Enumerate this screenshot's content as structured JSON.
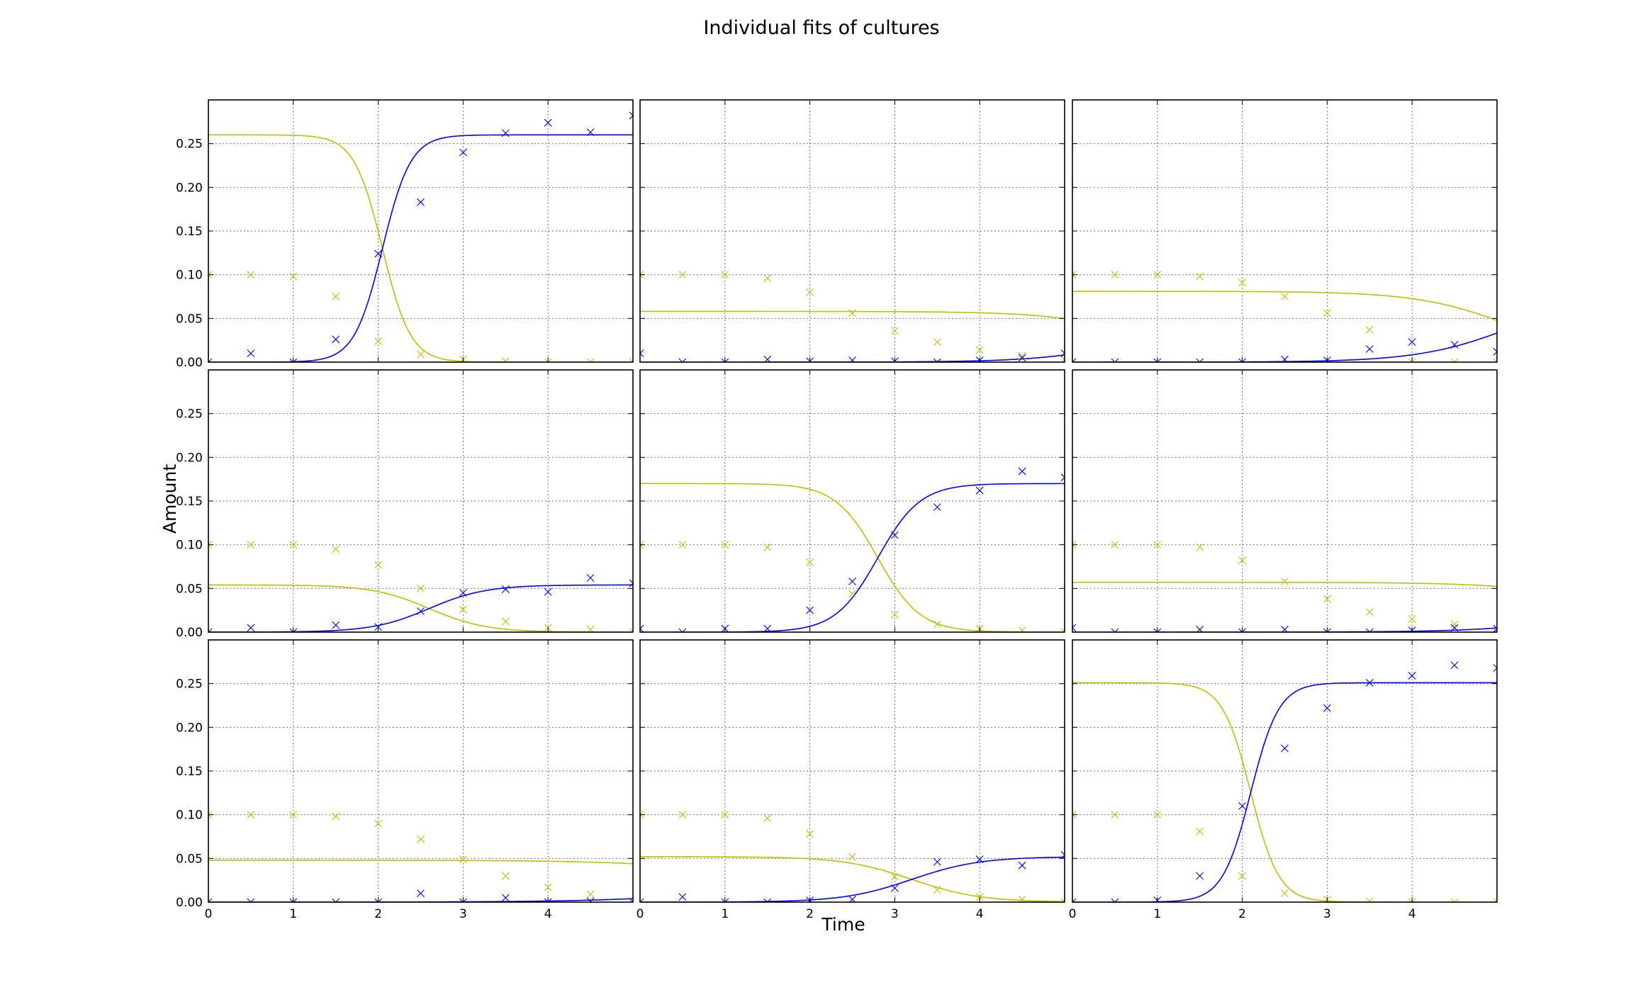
{
  "title": "Individual fits of cultures",
  "xlabel": "Time",
  "ylabel": "Amount",
  "colors": {
    "series_a": "#0000ff",
    "series_b": "#bfbf00",
    "grid": "#000000"
  },
  "chart_data": {
    "type": "scatter",
    "layout": "3x3 grid, shared axes",
    "title": "Individual fits of cultures",
    "xlabel": "Time",
    "ylabel": "Amount",
    "xlim": [
      0,
      5
    ],
    "ylim": [
      0,
      0.3
    ],
    "xticks": [
      0,
      1,
      2,
      3,
      4
    ],
    "yticks": [
      0.0,
      0.05,
      0.1,
      0.15,
      0.2,
      0.25
    ],
    "grid": true,
    "x": [
      0,
      0.5,
      1,
      1.5,
      2,
      2.5,
      3,
      3.5,
      4,
      4.5,
      5
    ],
    "panels": [
      {
        "fit_level": 0.26,
        "fit_t": 2.05,
        "fit_k": 6.0,
        "blue": [
          0.0,
          0.01,
          0.0,
          0.026,
          0.124,
          0.183,
          0.24,
          0.262,
          0.274,
          0.263,
          0.282
        ],
        "yellow": [
          0.1,
          0.1,
          0.098,
          0.075,
          0.024,
          0.009,
          0.003,
          0.001,
          0.0,
          0.0,
          0.0
        ]
      },
      {
        "fit_level": 0.058,
        "fit_t": 6.0,
        "fit_k": 1.8,
        "blue": [
          0.01,
          0.0,
          0.0,
          0.003,
          0.001,
          0.002,
          0.001,
          0.0,
          0.002,
          0.005,
          0.01
        ],
        "yellow": [
          0.1,
          0.1,
          0.1,
          0.096,
          0.08,
          0.056,
          0.036,
          0.023,
          0.014,
          0.007,
          0.003
        ]
      },
      {
        "fit_level": 0.081,
        "fit_t": 5.2,
        "fit_k": 1.8,
        "blue": [
          0.0,
          0.0,
          0.0,
          0.0,
          0.0,
          0.003,
          0.002,
          0.015,
          0.023,
          0.02,
          0.012
        ],
        "yellow": [
          0.1,
          0.1,
          0.1,
          0.098,
          0.091,
          0.075,
          0.056,
          0.037,
          0.0,
          0.0,
          0.0
        ]
      },
      {
        "fit_level": 0.054,
        "fit_t": 2.6,
        "fit_k": 3.0,
        "blue": [
          0.0,
          0.005,
          0.0,
          0.008,
          0.006,
          0.024,
          0.045,
          0.049,
          0.046,
          0.062,
          0.056
        ],
        "yellow": [
          0.1,
          0.1,
          0.1,
          0.095,
          0.077,
          0.05,
          0.026,
          0.012,
          0.005,
          0.003,
          0.0
        ]
      },
      {
        "fit_level": 0.17,
        "fit_t": 2.8,
        "fit_k": 4.0,
        "blue": [
          0.004,
          0.0,
          0.004,
          0.004,
          0.025,
          0.058,
          0.111,
          0.143,
          0.162,
          0.184,
          0.177
        ],
        "yellow": [
          0.1,
          0.1,
          0.1,
          0.097,
          0.08,
          0.044,
          0.02,
          0.009,
          0.004,
          0.002,
          0.0
        ]
      },
      {
        "fit_level": 0.057,
        "fit_t": 6.5,
        "fit_k": 1.6,
        "blue": [
          0.005,
          0.0,
          0.0,
          0.003,
          0.0,
          0.003,
          0.0,
          0.0,
          0.002,
          0.005,
          0.004
        ],
        "yellow": [
          0.1,
          0.1,
          0.1,
          0.097,
          0.082,
          0.058,
          0.038,
          0.023,
          0.015,
          0.009,
          0.0
        ]
      },
      {
        "fit_level": 0.048,
        "fit_t": 7.0,
        "fit_k": 1.2,
        "blue": [
          0.0,
          0.0,
          0.0,
          0.0,
          0.0,
          0.01,
          0.0,
          0.005,
          0.0,
          0.001,
          0.0
        ],
        "yellow": [
          0.1,
          0.1,
          0.1,
          0.098,
          0.09,
          0.072,
          0.049,
          0.03,
          0.017,
          0.009,
          0.0
        ]
      },
      {
        "fit_level": 0.052,
        "fit_t": 3.2,
        "fit_k": 2.5,
        "blue": [
          0.0,
          0.006,
          0.0,
          0.0,
          0.002,
          0.003,
          0.016,
          0.046,
          0.049,
          0.042,
          0.054
        ],
        "yellow": [
          0.1,
          0.1,
          0.1,
          0.096,
          0.078,
          0.052,
          0.029,
          0.014,
          0.006,
          0.003,
          0.0
        ]
      },
      {
        "fit_level": 0.251,
        "fit_t": 2.1,
        "fit_k": 6.0,
        "blue": [
          0.0,
          0.0,
          0.002,
          0.03,
          0.11,
          0.176,
          0.222,
          0.251,
          0.259,
          0.271,
          0.268
        ],
        "yellow": [
          0.1,
          0.1,
          0.1,
          0.081,
          0.03,
          0.01,
          0.003,
          0.001,
          0.0,
          0.0,
          0.0
        ]
      }
    ]
  }
}
